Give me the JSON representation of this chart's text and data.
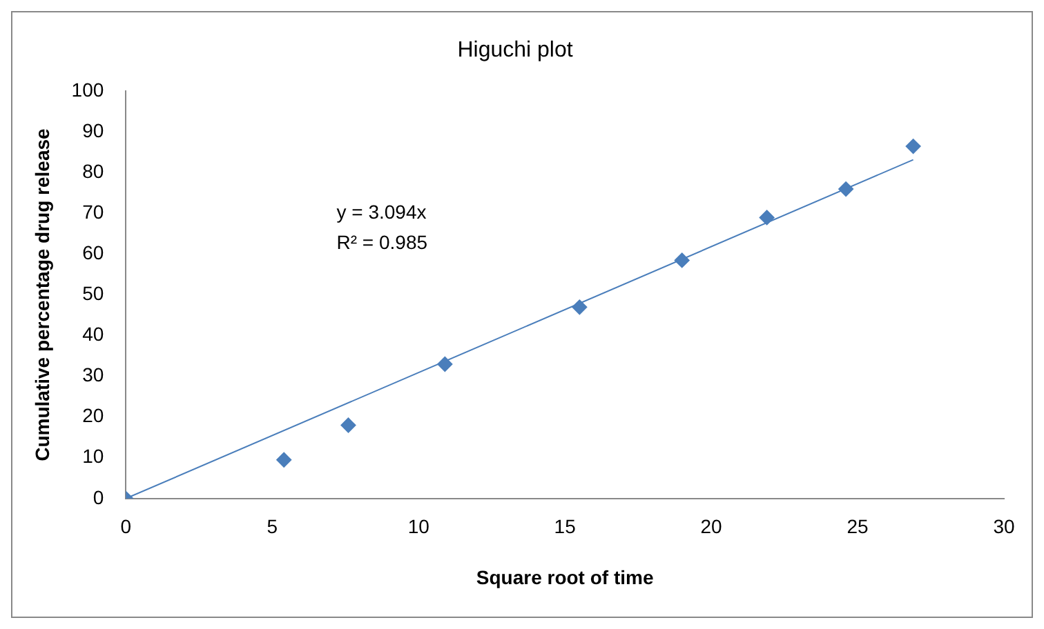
{
  "chart_data": {
    "type": "scatter",
    "title": "Higuchi plot",
    "xlabel": "Square root of time",
    "ylabel": "Cumulative percentage drug release",
    "series": [
      {
        "color": "#4a7ebb",
        "x": [
          0,
          5.4,
          7.6,
          10.9,
          15.5,
          19,
          21.9,
          24.6,
          26.9
        ],
        "values": [
          0,
          9.5,
          18,
          33,
          47,
          58.5,
          69,
          76,
          86.5
        ],
        "marker": "diamond"
      },
      {
        "type": "line",
        "color": "#4a7ebb",
        "x": [
          0,
          26.9
        ],
        "values": [
          0,
          83.2
        ],
        "marker": "none",
        "line_style": "solid"
      }
    ],
    "annotations": [
      "y = 3.094x",
      "R² = 0.985"
    ],
    "xlim": [
      0,
      30
    ],
    "xticks": [
      0,
      5,
      10,
      15,
      20,
      25,
      30
    ],
    "ylim": [
      0,
      100
    ],
    "yticks": [
      0,
      10,
      20,
      30,
      40,
      50,
      60,
      70,
      80,
      90,
      100
    ],
    "grid": false,
    "legend": false
  }
}
